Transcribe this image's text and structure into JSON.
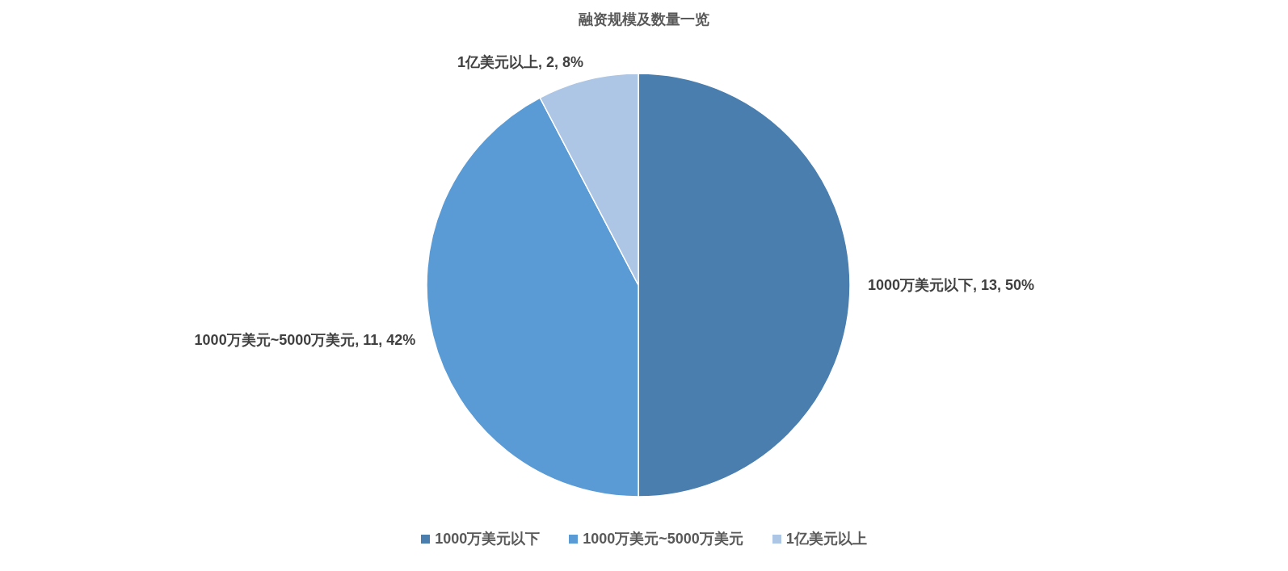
{
  "chart_data": {
    "type": "pie",
    "title": "融资规模及数量一览",
    "categories": [
      "1000万美元以下",
      "1000万美元~5000万美元",
      "1亿美元以上"
    ],
    "values": [
      13,
      11,
      2
    ],
    "colors": [
      "#4a7eae",
      "#5b9bd5",
      "#adc6e5"
    ],
    "value_labels": [
      "1000万美元以下, 13, 50%",
      "1000万美元~5000万美元, 11, 42%",
      "1亿美元以上, 2, 8%"
    ],
    "legend": "bottom"
  }
}
